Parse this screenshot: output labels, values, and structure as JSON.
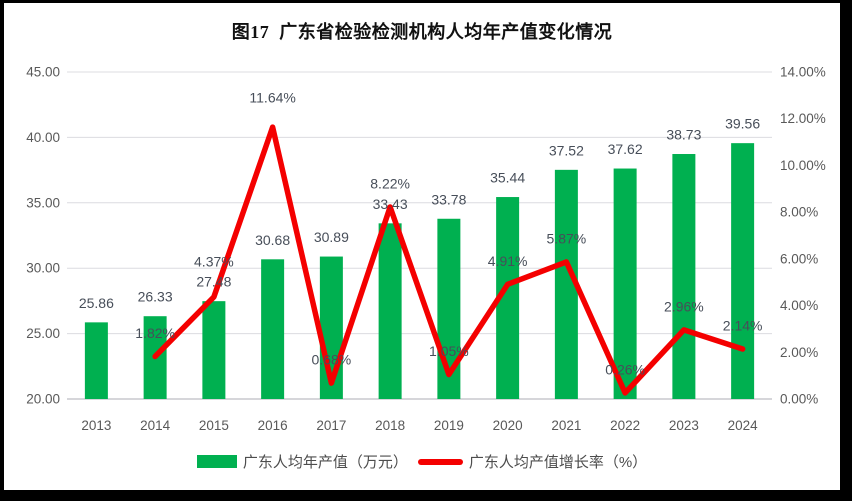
{
  "chart_data": {
    "type": "bar+line",
    "title": "图17  广东省检验检测机构人均年产值变化情况",
    "categories": [
      "2013",
      "2014",
      "2015",
      "2016",
      "2017",
      "2018",
      "2019",
      "2020",
      "2021",
      "2022",
      "2023",
      "2024"
    ],
    "series": [
      {
        "name": "广东人均年产值（万元）",
        "type": "bar",
        "axis": "left",
        "color": "#00b050",
        "values": [
          25.86,
          26.33,
          27.48,
          30.68,
          30.89,
          33.43,
          33.78,
          35.44,
          37.52,
          37.62,
          38.73,
          39.56
        ],
        "labels": [
          "25.86",
          "26.33",
          "27.48",
          "30.68",
          "30.89",
          "33.43",
          "33.78",
          "35.44",
          "37.52",
          "37.62",
          "38.73",
          "39.56"
        ]
      },
      {
        "name": "广东人均产值增长率（%）",
        "type": "line",
        "axis": "right",
        "color": "#f40000",
        "values": [
          null,
          1.82,
          4.37,
          11.64,
          0.68,
          8.22,
          1.05,
          4.91,
          5.87,
          0.26,
          2.96,
          2.14
        ],
        "labels": [
          null,
          "1.82%",
          "4.37%",
          "11.64%",
          "0.68%",
          "8.22%",
          "1.05%",
          "4.91%",
          "5.87%",
          "0.26%",
          "2.96%",
          "2.14%"
        ]
      }
    ],
    "left_axis": {
      "min": 20,
      "max": 45,
      "step": 5,
      "tick_labels": [
        "20.00",
        "25.00",
        "30.00",
        "35.00",
        "40.00",
        "45.00"
      ]
    },
    "right_axis": {
      "min": 0,
      "max": 14,
      "step": 2,
      "tick_labels": [
        "0.00%",
        "2.00%",
        "4.00%",
        "6.00%",
        "8.00%",
        "10.00%",
        "12.00%",
        "14.00%"
      ]
    },
    "grid": true,
    "legend_position": "bottom",
    "label_layout": {
      "bar_label_dy": -19,
      "line_label_dy_default": -23,
      "line_label_dy_overrides": {
        "2": -35,
        "3": -29
      }
    },
    "colors": {
      "grid": "#dcdce0",
      "baseline": "#c9c9cd",
      "tick_text": "#595959",
      "data_label_text": "#474e59"
    }
  }
}
